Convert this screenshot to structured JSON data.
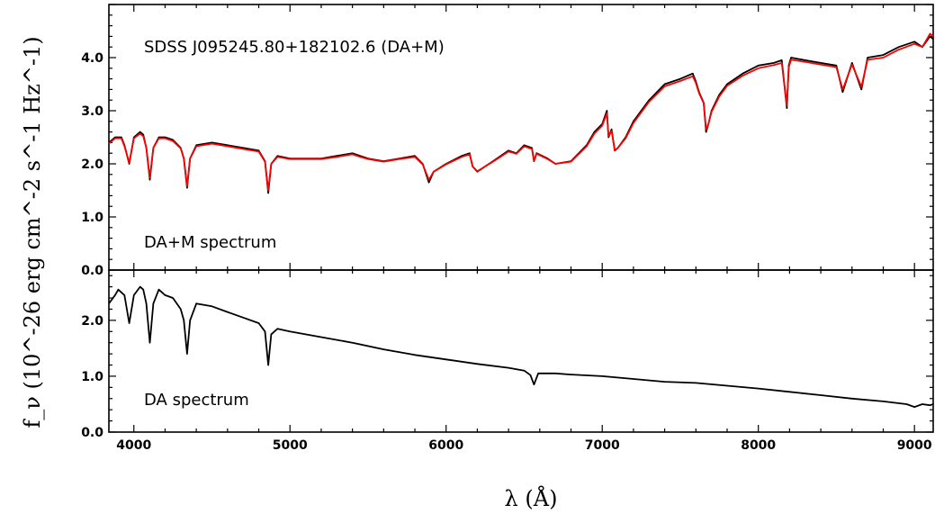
{
  "chart_data": [
    {
      "type": "line",
      "panel": "top",
      "title": "SDSS J095245.80+182102.6 (DA+M)",
      "annotation": "DA+M spectrum",
      "xlabel": "λ (Å)",
      "ylabel": "f_ν (10^-26 erg cm^-2 s^-1 Hz^-1)",
      "xlim": [
        3840,
        9120
      ],
      "ylim": [
        0.0,
        5.0
      ],
      "x_ticks": [
        4000,
        5000,
        6000,
        7000,
        8000,
        9000
      ],
      "x_tick_labels": [
        "4000",
        "5000",
        "6000",
        "7000",
        "8000",
        "9000"
      ],
      "y_ticks": [
        0.0,
        1.0,
        2.0,
        3.0,
        4.0
      ],
      "y_tick_labels": [
        "0.0",
        "1.0",
        "2.0",
        "3.0",
        "4.0"
      ],
      "series": [
        {
          "role": "observed",
          "color": "#000000",
          "x": [
            3840,
            3880,
            3920,
            3940,
            3970,
            4000,
            4040,
            4060,
            4080,
            4102,
            4125,
            4160,
            4200,
            4250,
            4300,
            4320,
            4341,
            4360,
            4400,
            4500,
            4600,
            4700,
            4800,
            4840,
            4861,
            4880,
            4920,
            5000,
            5100,
            5200,
            5300,
            5400,
            5450,
            5500,
            5600,
            5700,
            5800,
            5850,
            5890,
            5920,
            6000,
            6100,
            6150,
            6170,
            6200,
            6250,
            6300,
            6400,
            6450,
            6500,
            6550,
            6563,
            6580,
            6650,
            6700,
            6800,
            6900,
            6950,
            7000,
            7030,
            7040,
            7060,
            7080,
            7100,
            7150,
            7200,
            7300,
            7400,
            7500,
            7580,
            7600,
            7620,
            7650,
            7665,
            7680,
            7700,
            7750,
            7800,
            7900,
            8000,
            8100,
            8150,
            8183,
            8195,
            8210,
            8300,
            8400,
            8500,
            8540,
            8600,
            8660,
            8700,
            8800,
            8900,
            9000,
            9050,
            9100,
            9120
          ],
          "y": [
            2.4,
            2.5,
            2.5,
            2.35,
            2.0,
            2.5,
            2.6,
            2.55,
            2.3,
            1.7,
            2.3,
            2.5,
            2.5,
            2.45,
            2.3,
            2.1,
            1.55,
            2.1,
            2.35,
            2.4,
            2.35,
            2.3,
            2.25,
            2.05,
            1.45,
            2.0,
            2.15,
            2.1,
            2.1,
            2.1,
            2.15,
            2.2,
            2.15,
            2.1,
            2.05,
            2.1,
            2.15,
            2.0,
            1.65,
            1.85,
            2.0,
            2.15,
            2.2,
            1.95,
            1.85,
            1.95,
            2.05,
            2.25,
            2.2,
            2.35,
            2.3,
            2.05,
            2.2,
            2.1,
            2.0,
            2.05,
            2.35,
            2.6,
            2.75,
            3.0,
            2.5,
            2.65,
            2.25,
            2.3,
            2.5,
            2.8,
            3.2,
            3.5,
            3.6,
            3.7,
            3.55,
            3.35,
            3.15,
            2.6,
            2.75,
            3.0,
            3.3,
            3.5,
            3.7,
            3.85,
            3.9,
            3.95,
            3.05,
            3.85,
            4.0,
            3.95,
            3.9,
            3.85,
            3.35,
            3.9,
            3.4,
            4.0,
            4.05,
            4.2,
            4.3,
            4.2,
            4.4,
            4.35
          ]
        },
        {
          "role": "model",
          "color": "#ff0000",
          "x": [
            3840,
            3880,
            3920,
            3940,
            3970,
            4000,
            4040,
            4060,
            4080,
            4102,
            4125,
            4160,
            4200,
            4250,
            4300,
            4320,
            4341,
            4360,
            4400,
            4500,
            4600,
            4700,
            4800,
            4840,
            4861,
            4880,
            4920,
            5000,
            5100,
            5200,
            5300,
            5400,
            5450,
            5500,
            5600,
            5700,
            5800,
            5850,
            5890,
            5920,
            6000,
            6100,
            6150,
            6170,
            6200,
            6250,
            6300,
            6400,
            6450,
            6500,
            6550,
            6563,
            6580,
            6650,
            6700,
            6800,
            6900,
            6950,
            7000,
            7030,
            7040,
            7060,
            7080,
            7100,
            7150,
            7200,
            7300,
            7400,
            7500,
            7580,
            7600,
            7620,
            7650,
            7665,
            7680,
            7700,
            7750,
            7800,
            7900,
            8000,
            8100,
            8150,
            8183,
            8195,
            8210,
            8300,
            8400,
            8500,
            8540,
            8600,
            8660,
            8700,
            8800,
            8900,
            9000,
            9050,
            9100,
            9120
          ],
          "y": [
            2.38,
            2.48,
            2.48,
            2.33,
            2.02,
            2.48,
            2.57,
            2.52,
            2.3,
            1.74,
            2.3,
            2.48,
            2.48,
            2.43,
            2.29,
            2.1,
            1.58,
            2.1,
            2.33,
            2.38,
            2.33,
            2.28,
            2.23,
            2.04,
            1.5,
            2.0,
            2.13,
            2.09,
            2.09,
            2.09,
            2.13,
            2.18,
            2.13,
            2.09,
            2.04,
            2.09,
            2.13,
            1.99,
            1.7,
            1.85,
            1.99,
            2.13,
            2.18,
            1.95,
            1.86,
            1.95,
            2.04,
            2.23,
            2.19,
            2.33,
            2.28,
            2.06,
            2.19,
            2.09,
            2.0,
            2.04,
            2.33,
            2.57,
            2.72,
            2.95,
            2.52,
            2.62,
            2.26,
            2.3,
            2.48,
            2.77,
            3.17,
            3.46,
            3.56,
            3.65,
            3.52,
            3.33,
            3.14,
            2.65,
            2.75,
            2.98,
            3.27,
            3.47,
            3.66,
            3.8,
            3.86,
            3.9,
            3.1,
            3.82,
            3.96,
            3.92,
            3.87,
            3.82,
            3.4,
            3.87,
            3.45,
            3.96,
            4.0,
            4.15,
            4.26,
            4.2,
            4.45,
            4.4
          ]
        }
      ]
    },
    {
      "type": "line",
      "panel": "bottom",
      "annotation": "DA spectrum",
      "xlim": [
        3840,
        9120
      ],
      "ylim": [
        0.0,
        2.9
      ],
      "y_ticks": [
        0.0,
        1.0,
        2.0
      ],
      "y_tick_labels": [
        "0.0",
        "1.0",
        "2.0"
      ],
      "series": [
        {
          "role": "observed",
          "color": "#000000",
          "x": [
            3840,
            3880,
            3900,
            3940,
            3970,
            4000,
            4040,
            4060,
            4080,
            4102,
            4125,
            4160,
            4200,
            4250,
            4300,
            4320,
            4341,
            4360,
            4400,
            4500,
            4600,
            4700,
            4800,
            4840,
            4861,
            4880,
            4920,
            5000,
            5200,
            5400,
            5600,
            5800,
            6000,
            6200,
            6400,
            6500,
            6540,
            6563,
            6590,
            6700,
            6800,
            7000,
            7200,
            7400,
            7600,
            7800,
            8000,
            8200,
            8400,
            8600,
            8800,
            8950,
            9000,
            9050,
            9100,
            9120
          ],
          "y": [
            2.3,
            2.45,
            2.55,
            2.45,
            1.95,
            2.45,
            2.6,
            2.55,
            2.3,
            1.6,
            2.3,
            2.55,
            2.45,
            2.4,
            2.2,
            2.0,
            1.4,
            2.0,
            2.3,
            2.25,
            2.15,
            2.05,
            1.95,
            1.8,
            1.2,
            1.75,
            1.85,
            1.8,
            1.7,
            1.6,
            1.48,
            1.38,
            1.3,
            1.22,
            1.15,
            1.1,
            1.02,
            0.85,
            1.05,
            1.05,
            1.03,
            1.0,
            0.95,
            0.9,
            0.88,
            0.83,
            0.78,
            0.72,
            0.66,
            0.6,
            0.55,
            0.5,
            0.45,
            0.5,
            0.48,
            0.5
          ]
        }
      ]
    }
  ]
}
